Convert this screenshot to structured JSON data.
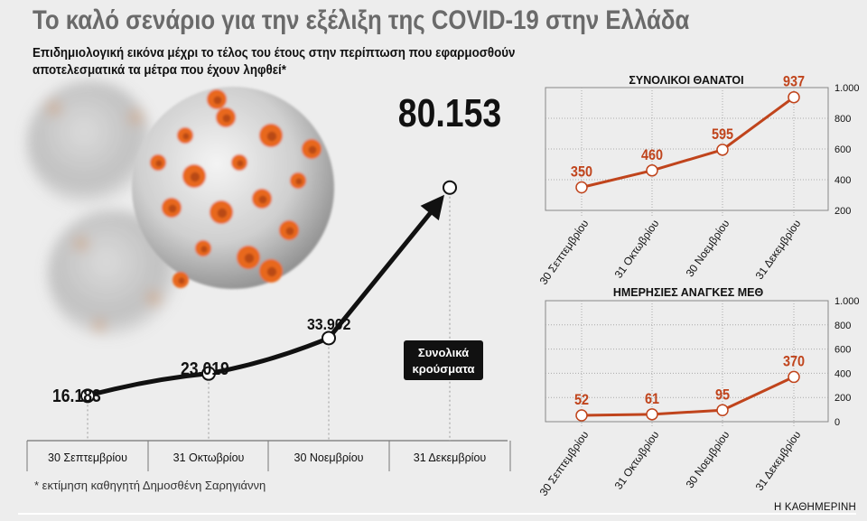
{
  "header": {
    "title": "Το καλό σενάριο για την εξέλιξη της COVID-19 στην Ελλάδα",
    "subtitle": "Επιδημιολογική εικόνα μέχρι το τέλος του έτους στην περίπτωση που εφαρμοσθούν αποτελεσματικά τα μέτρα που έχουν ληφθεί*"
  },
  "footnote": "* εκτίμηση καθηγητή Δημοσθένη Σαρηγιάννη",
  "brand": "Η ΚΑΘΗΜΕΡΙΝΗ",
  "colors": {
    "main_line": "#111111",
    "side_line": "#c0441c",
    "value_red": "#c0441c",
    "grid": "#9a9a9a",
    "virus_spike": "#e8671d"
  },
  "chart_data": [
    {
      "id": "total-cases",
      "type": "line",
      "categories": [
        "30 Σεπτεμβρίου",
        "31 Οκτωβρίου",
        "30 Νοεμβρίου",
        "31 Δεκεμβρίου"
      ],
      "values": [
        16183,
        23019,
        33902,
        80153
      ],
      "labels": [
        "16.183",
        "23.019",
        "33.902",
        "80.153"
      ],
      "legend": [
        "Συνολικά",
        "κρούσματα"
      ],
      "ylim": [
        11000,
        92000
      ]
    },
    {
      "id": "total-deaths",
      "type": "line",
      "title": "ΣΥΝΟΛΙΚΟΙ ΘΑΝΑΤΟΙ",
      "categories": [
        "30 Σεπτεμβρίου",
        "31 Οκτωβρίου",
        "30 Νοεμβρίου",
        "31 Δεκεμβρίου"
      ],
      "values": [
        350,
        460,
        595,
        937
      ],
      "ylim": [
        200,
        1000
      ],
      "yticks": [
        200,
        400,
        600,
        800,
        1000
      ],
      "ytick_labels": [
        "200",
        "400",
        "600",
        "800",
        "1.000"
      ],
      "grid": true
    },
    {
      "id": "icu-needs",
      "type": "line",
      "title": "ΗΜΕΡΗΣΙΕΣ ΑΝΑΓΚΕΣ ΜΕΘ",
      "categories": [
        "30 Σεπτεμβρίου",
        "31 Οκτωβρίου",
        "30 Νοεμβρίου",
        "31 Δεκεμβρίου"
      ],
      "values": [
        52,
        61,
        95,
        370
      ],
      "ylim": [
        0,
        1000
      ],
      "yticks": [
        0,
        200,
        400,
        600,
        800,
        1000
      ],
      "ytick_labels": [
        "0",
        "200",
        "400",
        "600",
        "800",
        "1.000"
      ],
      "grid": true
    }
  ]
}
